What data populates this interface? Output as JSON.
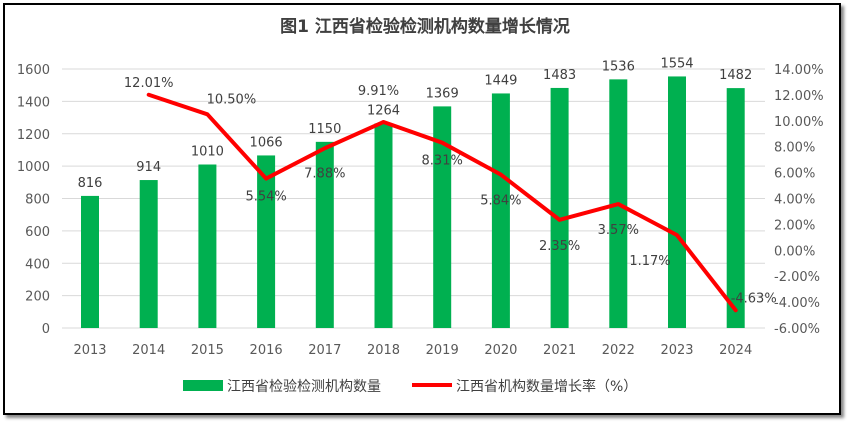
{
  "chart_data": {
    "type": "bar+line",
    "title": "图1 江西省检验检测机构数量增长情况",
    "categories": [
      "2013",
      "2014",
      "2015",
      "2016",
      "2017",
      "2018",
      "2019",
      "2020",
      "2021",
      "2022",
      "2023",
      "2024"
    ],
    "series": [
      {
        "name": "江西省检验检测机构数量",
        "type": "bar",
        "axis": "left",
        "color": "#00b050",
        "values": [
          816,
          914,
          1010,
          1066,
          1150,
          1264,
          1369,
          1449,
          1483,
          1536,
          1554,
          1482
        ]
      },
      {
        "name": "江西省机构数量增长率（%）",
        "type": "line",
        "axis": "right",
        "color": "#ff0000",
        "values": [
          null,
          12.01,
          10.5,
          5.54,
          7.88,
          9.91,
          8.31,
          5.84,
          2.35,
          3.57,
          1.17,
          -4.63
        ]
      }
    ],
    "y_left": {
      "min": 0,
      "max": 1600,
      "step": 200,
      "ticks": [
        "0",
        "200",
        "400",
        "600",
        "800",
        "1000",
        "1200",
        "1400",
        "1600"
      ]
    },
    "y_right": {
      "min": -6,
      "max": 14,
      "step": 2,
      "ticks": [
        "-6.00%",
        "-4.00%",
        "-2.00%",
        "0.00%",
        "2.00%",
        "4.00%",
        "6.00%",
        "8.00%",
        "10.00%",
        "12.00%",
        "14.00%"
      ]
    },
    "grid": true,
    "legend": "bottom"
  }
}
